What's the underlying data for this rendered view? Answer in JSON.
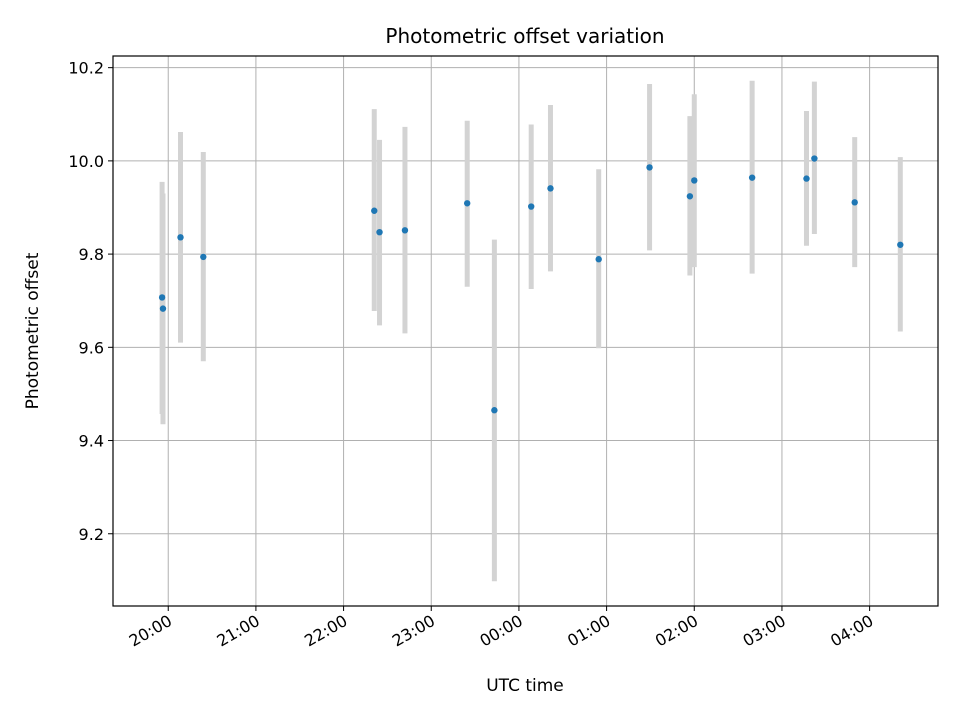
{
  "chart_data": {
    "type": "scatter",
    "title": "Photometric offset variation",
    "xlabel": "UTC time",
    "ylabel": "Photometric offset",
    "grid": true,
    "x_unit": "hours UTC (values past 24 are after midnight)",
    "xlim": [
      19.37,
      28.78
    ],
    "ylim": [
      9.045,
      10.225
    ],
    "x_ticks": [
      {
        "value": 20,
        "label": "20:00"
      },
      {
        "value": 21,
        "label": "21:00"
      },
      {
        "value": 22,
        "label": "22:00"
      },
      {
        "value": 23,
        "label": "23:00"
      },
      {
        "value": 24,
        "label": "00:00"
      },
      {
        "value": 25,
        "label": "01:00"
      },
      {
        "value": 26,
        "label": "02:00"
      },
      {
        "value": 27,
        "label": "03:00"
      },
      {
        "value": 28,
        "label": "04:00"
      }
    ],
    "y_ticks": [
      {
        "value": 9.2,
        "label": "9.2"
      },
      {
        "value": 9.4,
        "label": "9.4"
      },
      {
        "value": 9.6,
        "label": "9.6"
      },
      {
        "value": 9.8,
        "label": "9.8"
      },
      {
        "value": 10.0,
        "label": "10.0"
      },
      {
        "value": 10.2,
        "label": "10.2"
      }
    ],
    "points_color": "#1f77b4",
    "errorbar_color": "#d3d3d3",
    "points": [
      {
        "x": 19.93,
        "y": 9.707,
        "low": 9.457,
        "high": 9.955
      },
      {
        "x": 19.94,
        "y": 9.683,
        "low": 9.435,
        "high": 9.93
      },
      {
        "x": 20.14,
        "y": 9.836,
        "low": 9.61,
        "high": 10.062
      },
      {
        "x": 20.4,
        "y": 9.794,
        "low": 9.57,
        "high": 10.019
      },
      {
        "x": 22.35,
        "y": 9.893,
        "low": 9.678,
        "high": 10.111
      },
      {
        "x": 22.41,
        "y": 9.847,
        "low": 9.647,
        "high": 10.045
      },
      {
        "x": 22.7,
        "y": 9.851,
        "low": 9.63,
        "high": 10.073
      },
      {
        "x": 23.41,
        "y": 9.909,
        "low": 9.73,
        "high": 10.086
      },
      {
        "x": 23.72,
        "y": 9.465,
        "low": 9.098,
        "high": 9.831
      },
      {
        "x": 24.14,
        "y": 9.902,
        "low": 9.725,
        "high": 10.078
      },
      {
        "x": 24.36,
        "y": 9.941,
        "low": 9.763,
        "high": 10.12
      },
      {
        "x": 24.91,
        "y": 9.789,
        "low": 9.598,
        "high": 9.982
      },
      {
        "x": 25.49,
        "y": 9.986,
        "low": 9.808,
        "high": 10.165
      },
      {
        "x": 25.95,
        "y": 9.924,
        "low": 9.754,
        "high": 10.096
      },
      {
        "x": 26.0,
        "y": 9.958,
        "low": 9.772,
        "high": 10.143
      },
      {
        "x": 26.66,
        "y": 9.964,
        "low": 9.758,
        "high": 10.172
      },
      {
        "x": 27.28,
        "y": 9.962,
        "low": 9.818,
        "high": 10.107
      },
      {
        "x": 27.37,
        "y": 10.005,
        "low": 9.843,
        "high": 10.17
      },
      {
        "x": 27.83,
        "y": 9.911,
        "low": 9.772,
        "high": 10.051
      },
      {
        "x": 28.35,
        "y": 9.82,
        "low": 9.634,
        "high": 10.008
      }
    ]
  }
}
